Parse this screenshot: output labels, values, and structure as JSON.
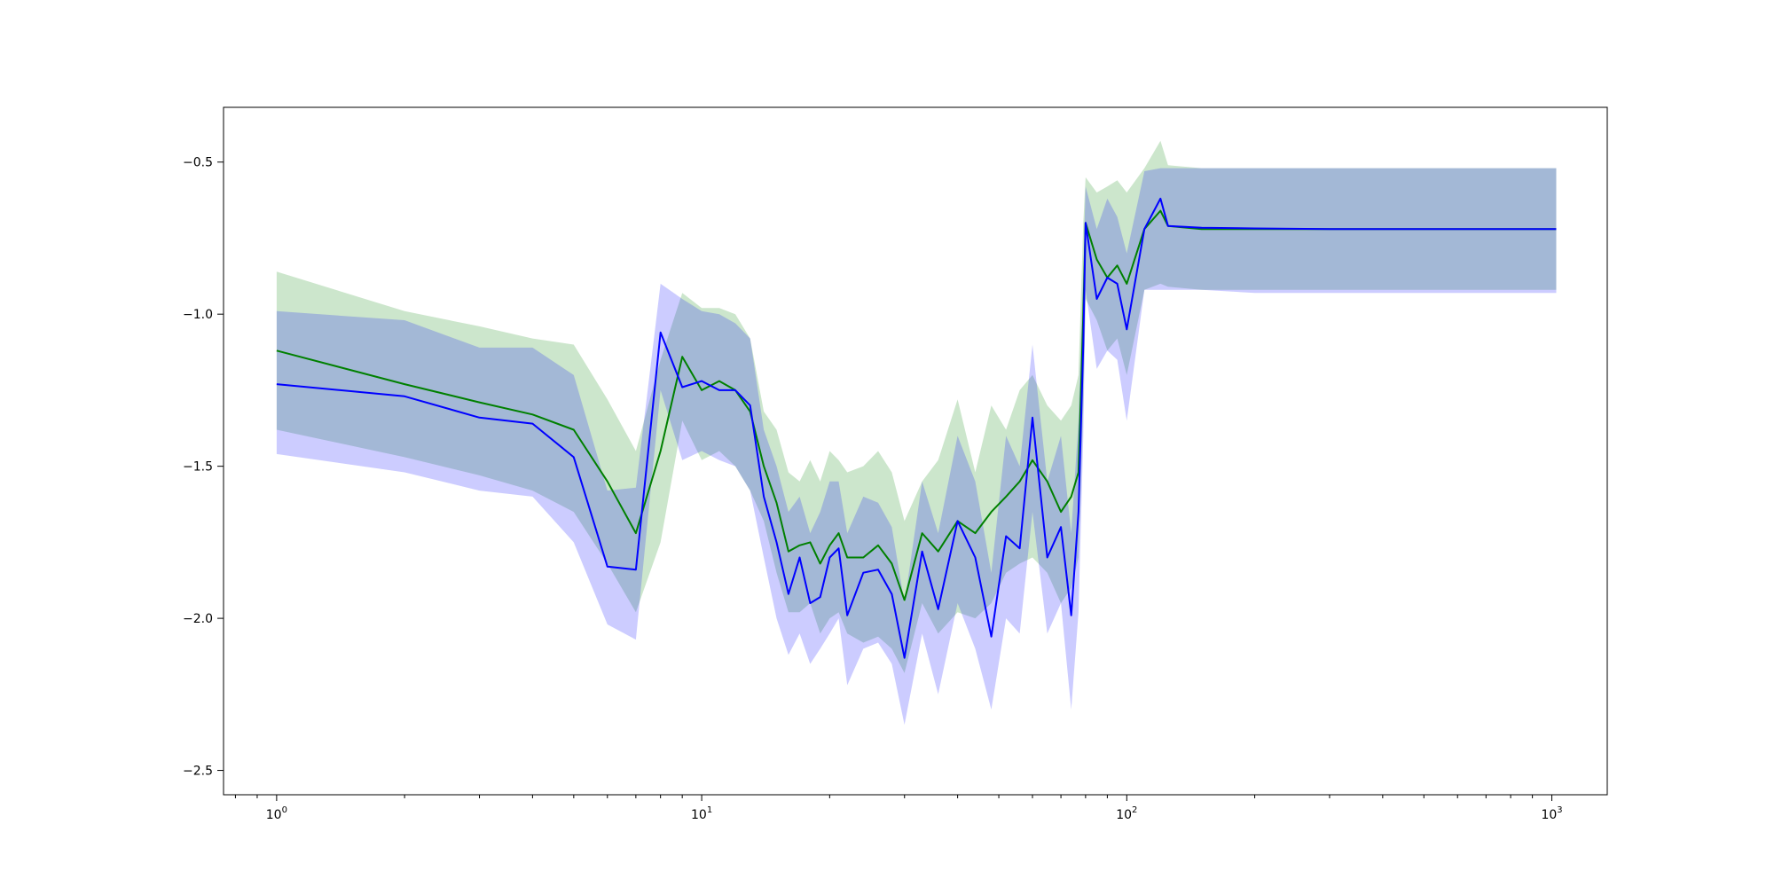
{
  "chart_data": {
    "type": "line",
    "title": "",
    "xlabel": "",
    "ylabel": "",
    "xscale": "log",
    "xlim": [
      0.75,
      1350
    ],
    "ylim": [
      -2.58,
      -0.32
    ],
    "grid": false,
    "legend": "none",
    "x_ticks": [
      {
        "value": 1,
        "base": "10",
        "exp": "0"
      },
      {
        "value": 10,
        "base": "10",
        "exp": "1"
      },
      {
        "value": 100,
        "base": "10",
        "exp": "2"
      },
      {
        "value": 1000,
        "base": "10",
        "exp": "3"
      }
    ],
    "y_ticks": [
      {
        "value": -0.5,
        "label": "−0.5"
      },
      {
        "value": -1.0,
        "label": "−1.0"
      },
      {
        "value": -1.5,
        "label": "−1.5"
      },
      {
        "value": -2.0,
        "label": "−2.0"
      },
      {
        "value": -2.5,
        "label": "−2.5"
      }
    ],
    "series": [
      {
        "color": "#008000",
        "band_color": "#008000",
        "band_opacity": 0.2,
        "x": [
          1,
          2,
          3,
          4,
          5,
          6,
          7,
          8,
          9,
          10,
          11,
          12,
          13,
          14,
          15,
          16,
          17,
          18,
          19,
          20,
          21,
          22,
          24,
          26,
          28,
          30,
          33,
          36,
          40,
          44,
          48,
          52,
          56,
          60,
          65,
          70,
          74,
          77,
          79,
          80,
          85,
          90,
          95,
          100,
          110,
          120,
          125,
          150,
          200,
          300,
          500,
          700,
          1024
        ],
        "y": [
          -1.12,
          -1.23,
          -1.29,
          -1.33,
          -1.38,
          -1.55,
          -1.72,
          -1.45,
          -1.14,
          -1.25,
          -1.22,
          -1.25,
          -1.32,
          -1.5,
          -1.62,
          -1.78,
          -1.76,
          -1.75,
          -1.82,
          -1.76,
          -1.72,
          -1.8,
          -1.8,
          -1.76,
          -1.82,
          -1.94,
          -1.72,
          -1.78,
          -1.68,
          -1.72,
          -1.65,
          -1.6,
          -1.55,
          -1.48,
          -1.55,
          -1.65,
          -1.6,
          -1.52,
          -1.0,
          -0.7,
          -0.82,
          -0.88,
          -0.84,
          -0.9,
          -0.72,
          -0.66,
          -0.71,
          -0.72,
          -0.72,
          -0.72,
          -0.72,
          -0.72,
          -0.72
        ],
        "upper": [
          -0.86,
          -0.99,
          -1.04,
          -1.08,
          -1.1,
          -1.28,
          -1.45,
          -1.15,
          -0.93,
          -0.98,
          -0.98,
          -1.0,
          -1.08,
          -1.32,
          -1.38,
          -1.52,
          -1.55,
          -1.48,
          -1.55,
          -1.45,
          -1.48,
          -1.52,
          -1.5,
          -1.45,
          -1.52,
          -1.68,
          -1.55,
          -1.48,
          -1.28,
          -1.52,
          -1.3,
          -1.38,
          -1.25,
          -1.2,
          -1.3,
          -1.35,
          -1.3,
          -1.2,
          -0.7,
          -0.55,
          -0.6,
          -0.58,
          -0.56,
          -0.6,
          -0.52,
          -0.43,
          -0.51,
          -0.52,
          -0.52,
          -0.52,
          -0.52,
          -0.52,
          -0.52
        ],
        "lower": [
          -1.38,
          -1.47,
          -1.53,
          -1.58,
          -1.65,
          -1.82,
          -1.98,
          -1.75,
          -1.35,
          -1.48,
          -1.45,
          -1.5,
          -1.58,
          -1.68,
          -1.85,
          -1.98,
          -1.98,
          -1.95,
          -2.05,
          -2.0,
          -1.98,
          -2.05,
          -2.08,
          -2.06,
          -2.1,
          -2.18,
          -1.95,
          -2.05,
          -1.98,
          -2.0,
          -1.95,
          -1.85,
          -1.82,
          -1.8,
          -1.85,
          -1.95,
          -1.9,
          -1.8,
          -1.3,
          -0.95,
          -1.02,
          -1.12,
          -1.08,
          -1.2,
          -0.92,
          -0.9,
          -0.91,
          -0.92,
          -0.92,
          -0.92,
          -0.92,
          -0.92,
          -0.92
        ]
      },
      {
        "color": "#0000ff",
        "band_color": "#0000ff",
        "band_opacity": 0.2,
        "x": [
          1,
          2,
          3,
          4,
          5,
          6,
          7,
          8,
          9,
          10,
          11,
          12,
          13,
          14,
          15,
          16,
          17,
          18,
          19,
          20,
          21,
          22,
          24,
          26,
          28,
          30,
          33,
          36,
          40,
          44,
          48,
          52,
          56,
          60,
          65,
          70,
          74,
          77,
          79,
          80,
          85,
          90,
          95,
          100,
          110,
          120,
          125,
          150,
          200,
          300,
          500,
          700,
          1024
        ],
        "y": [
          -1.23,
          -1.27,
          -1.34,
          -1.36,
          -1.47,
          -1.83,
          -1.84,
          -1.06,
          -1.24,
          -1.22,
          -1.25,
          -1.25,
          -1.3,
          -1.6,
          -1.75,
          -1.92,
          -1.8,
          -1.95,
          -1.93,
          -1.8,
          -1.77,
          -1.99,
          -1.85,
          -1.84,
          -1.92,
          -2.13,
          -1.78,
          -1.97,
          -1.68,
          -1.8,
          -2.06,
          -1.73,
          -1.77,
          -1.34,
          -1.8,
          -1.7,
          -1.99,
          -1.65,
          -1.1,
          -0.7,
          -0.95,
          -0.88,
          -0.9,
          -1.05,
          -0.72,
          -0.62,
          -0.71,
          -0.716,
          -0.718,
          -0.72,
          -0.72,
          -0.72,
          -0.72
        ],
        "upper": [
          -0.99,
          -1.02,
          -1.11,
          -1.11,
          -1.2,
          -1.58,
          -1.57,
          -0.9,
          -0.95,
          -0.99,
          -1.0,
          -1.03,
          -1.08,
          -1.38,
          -1.5,
          -1.65,
          -1.6,
          -1.72,
          -1.65,
          -1.55,
          -1.55,
          -1.72,
          -1.6,
          -1.62,
          -1.7,
          -1.95,
          -1.55,
          -1.72,
          -1.4,
          -1.55,
          -1.85,
          -1.4,
          -1.5,
          -1.1,
          -1.55,
          -1.4,
          -1.72,
          -1.35,
          -0.85,
          -0.58,
          -0.72,
          -0.62,
          -0.68,
          -0.8,
          -0.53,
          -0.52,
          -0.52,
          -0.52,
          -0.52,
          -0.52,
          -0.52,
          -0.52,
          -0.52
        ],
        "lower": [
          -1.46,
          -1.52,
          -1.58,
          -1.6,
          -1.75,
          -2.02,
          -2.07,
          -1.25,
          -1.48,
          -1.45,
          -1.48,
          -1.5,
          -1.58,
          -1.8,
          -2.0,
          -2.12,
          -2.05,
          -2.15,
          -2.1,
          -2.05,
          -2.0,
          -2.22,
          -2.1,
          -2.08,
          -2.15,
          -2.35,
          -2.05,
          -2.25,
          -1.95,
          -2.1,
          -2.3,
          -2.0,
          -2.05,
          -1.65,
          -2.05,
          -1.95,
          -2.3,
          -1.98,
          -1.4,
          -0.92,
          -1.18,
          -1.12,
          -1.15,
          -1.35,
          -0.92,
          -0.92,
          -0.92,
          -0.92,
          -0.93,
          -0.93,
          -0.93,
          -0.93,
          -0.93
        ]
      }
    ]
  }
}
